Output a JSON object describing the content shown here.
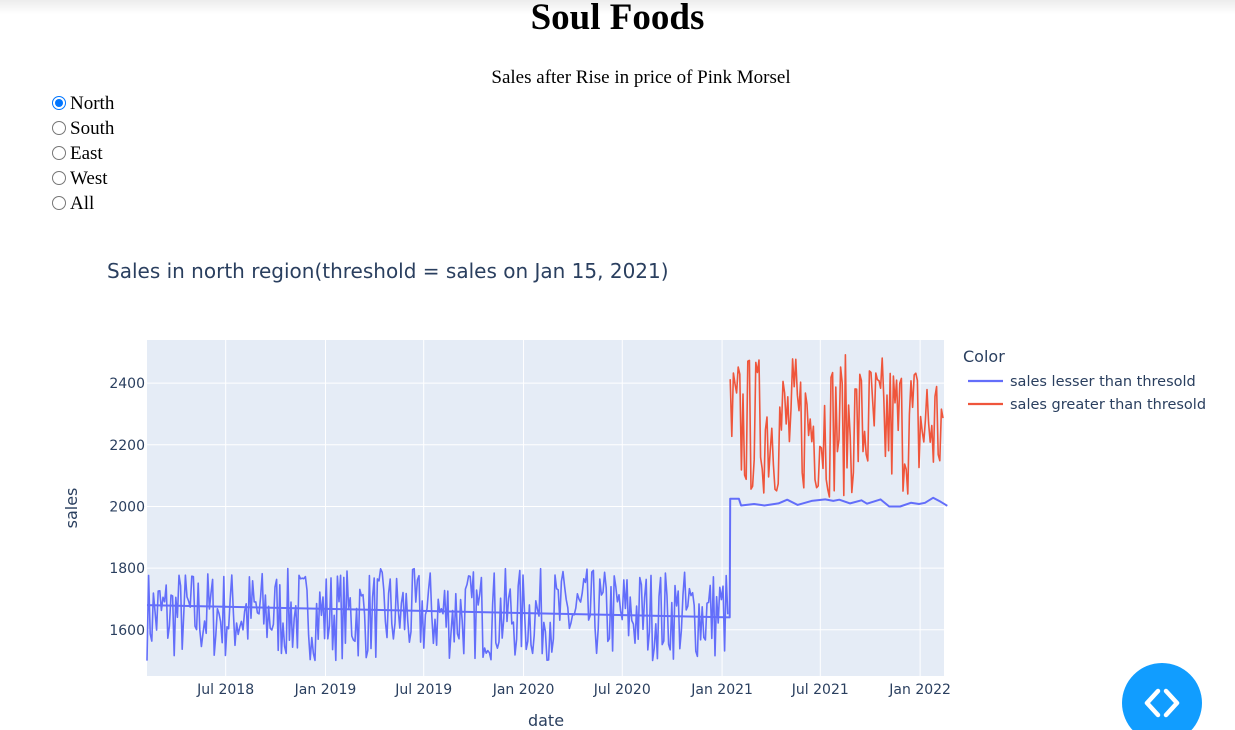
{
  "page": {
    "title": "Soul Foods",
    "subtitle": "Sales after Rise in price of Pink Morsel"
  },
  "region_selector": {
    "options": [
      "North",
      "South",
      "East",
      "West",
      "All"
    ],
    "selected": "North"
  },
  "chart_data": {
    "type": "line",
    "title": "Sales in north region(threshold = sales on Jan 15, 2021)",
    "xlabel": "date",
    "ylabel": "sales",
    "x_range": [
      "2018-02-06",
      "2022-02-14"
    ],
    "ylim": [
      1450,
      2540
    ],
    "x_ticks": [
      {
        "date": "2018-07-01",
        "label": "Jul 2018"
      },
      {
        "date": "2019-01-01",
        "label": "Jan 2019"
      },
      {
        "date": "2019-07-01",
        "label": "Jul 2019"
      },
      {
        "date": "2020-01-01",
        "label": "Jan 2020"
      },
      {
        "date": "2020-07-01",
        "label": "Jul 2020"
      },
      {
        "date": "2021-01-01",
        "label": "Jan 2021"
      },
      {
        "date": "2021-07-01",
        "label": "Jul 2021"
      },
      {
        "date": "2022-01-01",
        "label": "Jan 2022"
      }
    ],
    "y_ticks": [
      1600,
      1800,
      2000,
      2200,
      2400
    ],
    "grid": true,
    "legend": {
      "title": "Color",
      "position": "right"
    },
    "series": [
      {
        "name": "sales lesser than thresold",
        "color": "#636efa",
        "points": [
          {
            "x": "2018-02-06",
            "y": 1680
          },
          {
            "x": "2021-01-15",
            "y": 1640
          },
          {
            "x": "2021-01-16",
            "y": 2025
          },
          {
            "x": "2021-02-01",
            "y": 2025
          },
          {
            "x": "2021-02-05",
            "y": 2003
          },
          {
            "x": "2021-03-01",
            "y": 2008
          },
          {
            "x": "2021-03-20",
            "y": 2003
          },
          {
            "x": "2021-04-15",
            "y": 2010
          },
          {
            "x": "2021-05-01",
            "y": 2022
          },
          {
            "x": "2021-05-20",
            "y": 2005
          },
          {
            "x": "2021-06-15",
            "y": 2018
          },
          {
            "x": "2021-07-10",
            "y": 2023
          },
          {
            "x": "2021-07-25",
            "y": 2018
          },
          {
            "x": "2021-08-05",
            "y": 2022
          },
          {
            "x": "2021-08-25",
            "y": 2010
          },
          {
            "x": "2021-09-15",
            "y": 2020
          },
          {
            "x": "2021-09-25",
            "y": 2009
          },
          {
            "x": "2021-10-20",
            "y": 2023
          },
          {
            "x": "2021-11-05",
            "y": 2000
          },
          {
            "x": "2021-11-25",
            "y": 2000
          },
          {
            "x": "2021-12-15",
            "y": 2012
          },
          {
            "x": "2021-12-30",
            "y": 2008
          },
          {
            "x": "2022-01-10",
            "y": 2012
          },
          {
            "x": "2022-01-25",
            "y": 2028
          },
          {
            "x": "2022-02-08",
            "y": 2015
          },
          {
            "x": "2022-02-20",
            "y": 2002
          }
        ],
        "noise_segments": [
          {
            "x_start": "2018-02-06",
            "x_end": "2021-01-14",
            "y_min": 1500,
            "y_max": 1800
          }
        ]
      },
      {
        "name": "sales greater than thresold",
        "color": "#ef553b",
        "noise_segments": [
          {
            "x_start": "2021-01-16",
            "x_end": "2022-02-14",
            "y_min": 2030,
            "y_max": 2495
          }
        ]
      }
    ]
  },
  "fab": {
    "icon": "code-brackets-icon",
    "color": "#119dff"
  }
}
